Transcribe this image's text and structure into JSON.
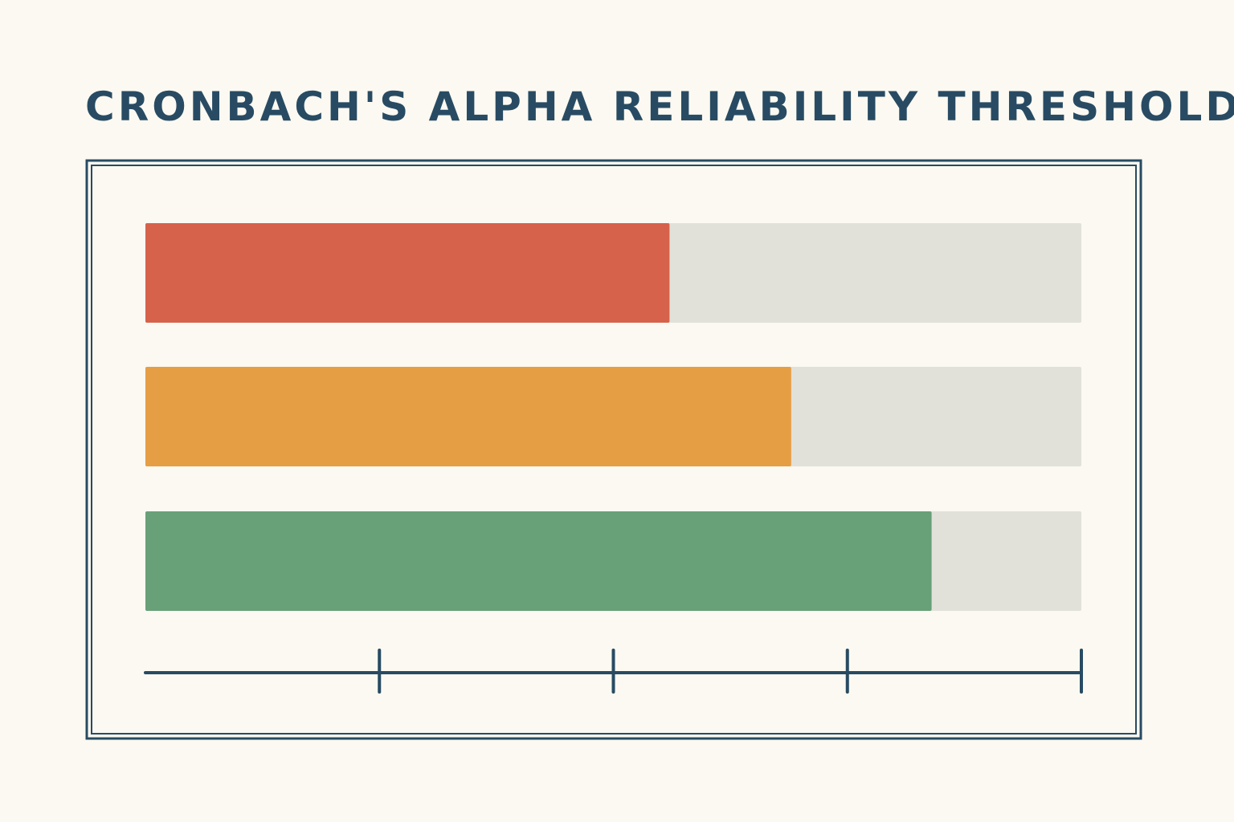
{
  "colors": {
    "background": "#fbf9f1",
    "ink": "#284b63",
    "track": "#e1e1d9",
    "low": "#d6624b",
    "medium": "#e69e45",
    "high": "#68a078"
  },
  "chart_data": {
    "type": "bar",
    "orientation": "horizontal",
    "title": "CRONBACH'S ALPHA RELIABILITY THRESHOLDS",
    "xlabel": "",
    "ylabel": "",
    "xlim": [
      0,
      1
    ],
    "xticks": [
      0,
      0.25,
      0.5,
      0.75,
      1
    ],
    "tick_labels_shown": false,
    "grid": false,
    "legend": false,
    "categories": [
      "",
      "",
      ""
    ],
    "values": [
      0.56,
      0.69,
      0.84
    ],
    "bar_colors": [
      "#d6624b",
      "#e69e45",
      "#68a078"
    ],
    "track_color": "#e1e1d9"
  }
}
